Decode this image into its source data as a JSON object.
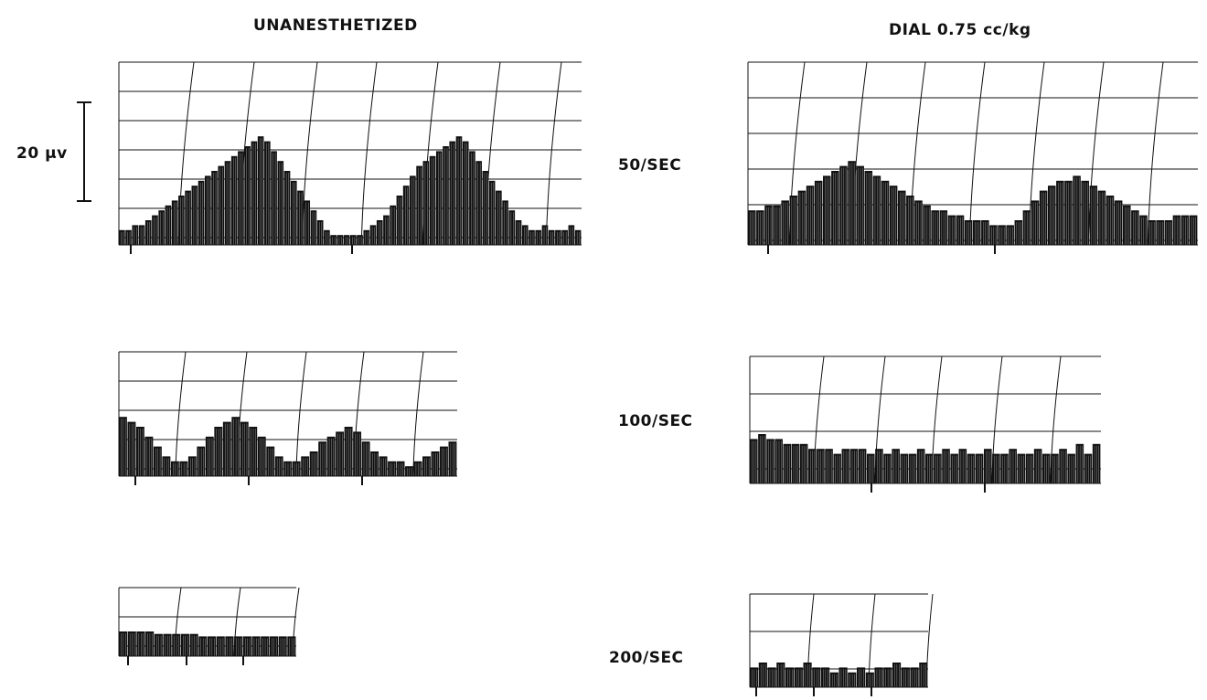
{
  "titles": {
    "left": "UNANESTHETIZED",
    "right": "DIAL 0.75 cc/kg"
  },
  "scale_bar": {
    "label": "20 μv",
    "value_uv": 20
  },
  "rates": [
    "50/SEC",
    "100/SEC",
    "200/SEC"
  ],
  "colors": {
    "ink": "#111111",
    "background": "#ffffff"
  },
  "chart_data": [
    {
      "type": "bar",
      "condition": "UNANESTHETIZED",
      "rate": "50/SEC",
      "amplitude_uv": [
        3,
        3,
        4,
        4,
        5,
        6,
        7,
        8,
        9,
        10,
        11,
        12,
        13,
        14,
        15,
        16,
        17,
        18,
        19,
        20,
        21,
        22,
        21,
        19,
        17,
        15,
        13,
        11,
        9,
        7,
        5,
        3,
        2,
        2,
        2,
        2,
        2,
        3,
        4,
        5,
        6,
        8,
        10,
        12,
        14,
        16,
        17,
        18,
        19,
        20,
        21,
        22,
        21,
        19,
        17,
        15,
        13,
        11,
        9,
        7,
        5,
        4,
        3,
        3,
        4,
        3,
        3,
        3,
        4,
        3
      ]
    },
    {
      "type": "bar",
      "condition": "UNANESTHETIZED",
      "rate": "100/SEC",
      "amplitude_uv": [
        12,
        11,
        10,
        8,
        6,
        4,
        3,
        3,
        4,
        6,
        8,
        10,
        11,
        12,
        11,
        10,
        8,
        6,
        4,
        3,
        3,
        4,
        5,
        7,
        8,
        9,
        10,
        9,
        7,
        5,
        4,
        3,
        3,
        2,
        3,
        4,
        5,
        6,
        7
      ]
    },
    {
      "type": "bar",
      "condition": "UNANESTHETIZED",
      "rate": "200/SEC",
      "amplitude_uv": [
        5,
        5,
        5,
        5,
        4.5,
        4.5,
        4.5,
        4.5,
        4.5,
        4,
        4,
        4,
        4,
        4,
        4,
        4,
        4,
        4,
        4,
        4
      ]
    },
    {
      "type": "bar",
      "condition": "DIAL 0.75 cc/kg",
      "rate": "50/SEC",
      "amplitude_uv": [
        7,
        7,
        8,
        8,
        9,
        10,
        11,
        12,
        13,
        14,
        15,
        16,
        17,
        16,
        15,
        14,
        13,
        12,
        11,
        10,
        9,
        8,
        7,
        7,
        6,
        6,
        5,
        5,
        5,
        4,
        4,
        4,
        5,
        7,
        9,
        11,
        12,
        13,
        13,
        14,
        13,
        12,
        11,
        10,
        9,
        8,
        7,
        6,
        5,
        5,
        5,
        6,
        6,
        6
      ]
    },
    {
      "type": "bar",
      "condition": "DIAL 0.75 cc/kg",
      "rate": "100/SEC",
      "amplitude_uv": [
        9,
        10,
        9,
        9,
        8,
        8,
        8,
        7,
        7,
        7,
        6,
        7,
        7,
        7,
        6,
        7,
        6,
        7,
        6,
        6,
        7,
        6,
        6,
        7,
        6,
        7,
        6,
        6,
        7,
        6,
        6,
        7,
        6,
        6,
        7,
        6,
        6,
        7,
        6,
        8,
        6,
        8
      ]
    },
    {
      "type": "bar",
      "condition": "DIAL 0.75 cc/kg",
      "rate": "200/SEC",
      "amplitude_uv": [
        4,
        5,
        4,
        5,
        4,
        4,
        5,
        4,
        4,
        3,
        4,
        3,
        4,
        3,
        4,
        4,
        5,
        4,
        4,
        5
      ]
    }
  ]
}
